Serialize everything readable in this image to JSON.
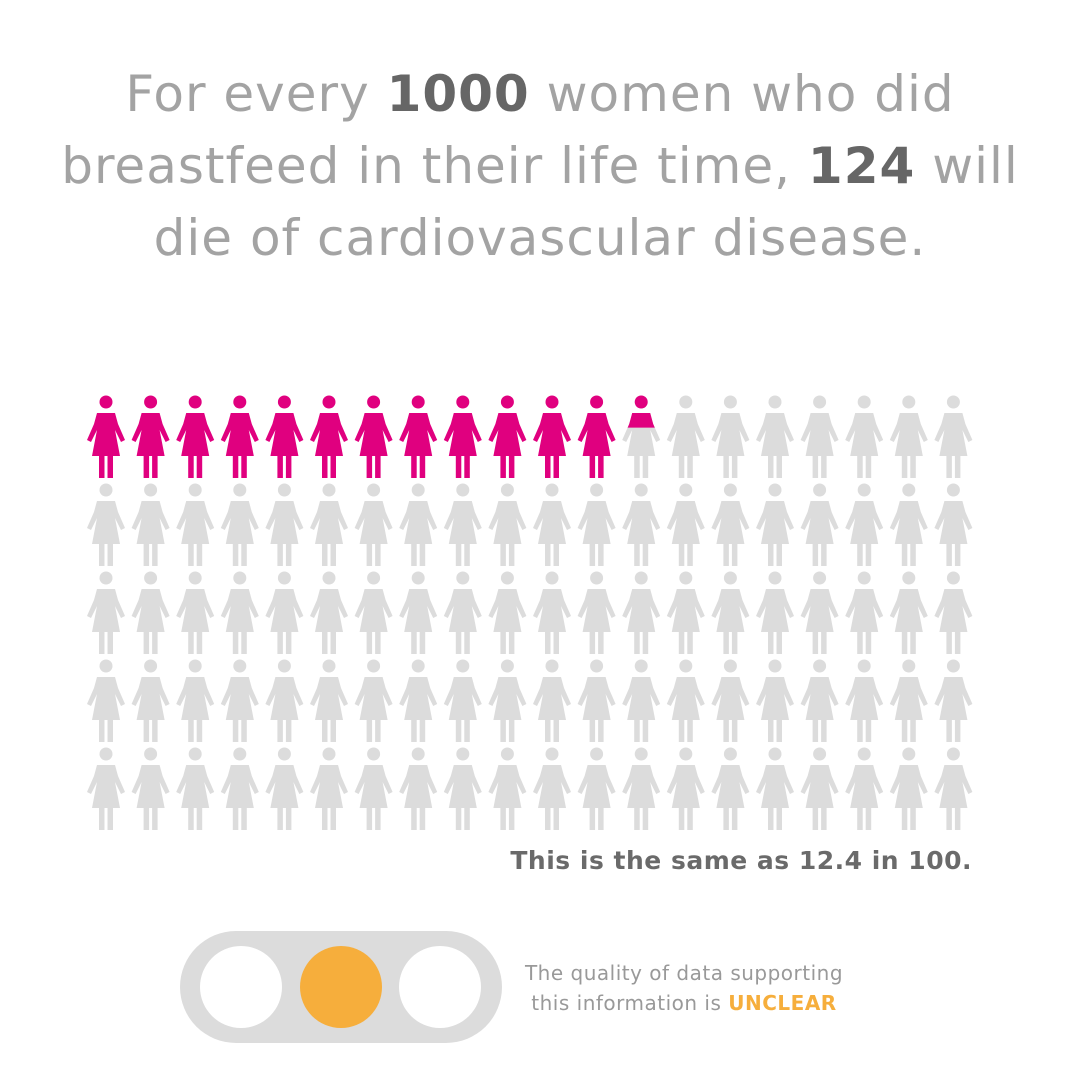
{
  "headline": {
    "part1": "For every ",
    "total": "1000",
    "part2": " women who did breastfeed in their life time, ",
    "count": "124",
    "part3": " will die of cardiovascular disease."
  },
  "pictogram": {
    "total_icons": 100,
    "columns": 20,
    "highlighted": 12.4,
    "highlight_color": "#e0007f",
    "base_color": "#dcdcdc",
    "icon": "woman-icon"
  },
  "equivalence": "This is the same as 12.4 in 100.",
  "quality": {
    "line1": "The quality of data supporting",
    "line2": "this information is ",
    "rating": "UNCLEAR",
    "active_lamp": 2,
    "lamp_count": 3,
    "active_color": "#f6ae3c"
  }
}
